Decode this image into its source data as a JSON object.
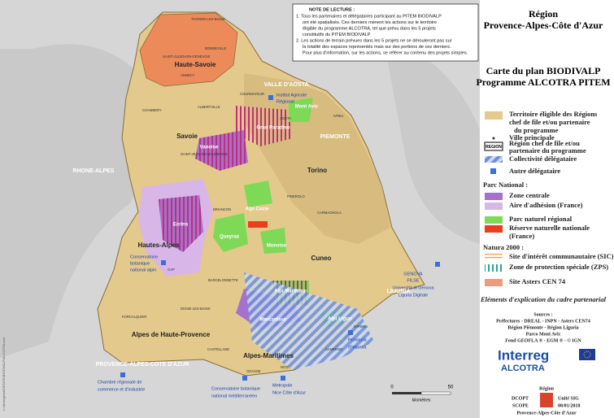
{
  "header": {
    "region_lines": [
      "Région",
      "Provence-Alpes-Côte d'Azur"
    ],
    "title_lines": [
      "Carte du plan BIODIVALP",
      "Programme ALCOTRA PITEM"
    ]
  },
  "note": {
    "title": "NOTE DE LECTURE :",
    "lines": [
      "1. Tous les partenaires et délégataires participant au PITEM BIODIVALP",
      "ont été spatialisés. Ces derniers mènent les actions sur le territoire",
      "éligible du programme ALCOTRA, tel que prévu dans les 5 projets",
      "constitutifs du PITEM BIODIVALP",
      "2. Les actions de terrain prévues dans les 5 projets ne se dérouleront pas sur",
      "la totalité des espaces représentés mais sur des portions de ces derniers.",
      "Pour plus d'information, sur les actions, se référer au contenu des projets simples."
    ]
  },
  "legend": {
    "eligible": [
      "Territoire éligible des Régions",
      "chef de file et/ou partenaire",
      "du programme"
    ],
    "city": "Ville principale",
    "region_swatch": "REGION",
    "region": [
      "Région chef de file et/ou",
      "partenaire du programme"
    ],
    "collectivite": "Collectivité délégataire",
    "autre": "Autre délégataire",
    "parc_national": {
      "title": "Parc National :",
      "items": [
        "Zone centrale",
        "Aire d'adhésion (France)"
      ]
    },
    "pnr": "Parc naturel régional",
    "reserve": [
      "Réserve naturelle nationale",
      "(France)"
    ],
    "natura": {
      "title": "Natura 2000 :",
      "items": [
        "Site d'intérêt communautaire (SIC)",
        "Zone de protection spéciale (ZPS)"
      ]
    },
    "asters": "Site Asters CEN 74"
  },
  "explication": "Eléments d'explication du cadre partenarial",
  "sources": [
    "Sources :",
    "Préfectures - DREAL - INPN - Asters CEN74",
    "Région Piémonte - Région Liguria",
    "Parco Mont Avic",
    "Fond GEOFLA ® - EGM ® - © IGN"
  ],
  "logo": {
    "interreg": "Interreg",
    "alcotra": "ALCOTRA",
    "region": "Région",
    "region_name": "Provence-Alpes-Côte d'Azur",
    "dcopt": "DCOPT",
    "scope": "SCOPE",
    "unit": "Unité SIG",
    "date": "08/01/2018"
  },
  "scale": {
    "labels": [
      "0",
      "50"
    ],
    "unit": "kilomètres"
  },
  "file_path": "L:\\devregionalS\\EDITE\\BIODIVALP\\ALCOTRA.wor",
  "map_labels": [
    "Haute-Savoie",
    "Savoie",
    "Hautes-Alpes",
    "Alpes de Haute-Provence",
    "Alpes-Maritimes",
    "Torino",
    "Cuneo",
    "VALLE D'AOSTA",
    "PIEMONTE",
    "LIGURIA",
    "RHONE-ALPES",
    "PROVENCE-ALPES-COTE D'AZUR",
    "Gran Paradiso",
    "Vanoise",
    "Mont Avic",
    "Ecrins",
    "Queyras",
    "Alpi Cozie",
    "Monviso",
    "Alpi Marittime",
    "Mercantour",
    "Alpi Liguri",
    "Institut Agricole",
    "Régional",
    "Conservatoire",
    "botanique",
    "national alpin",
    "GENOVA",
    "FILSE",
    "Università di Genova",
    "Liguria Digitale",
    "Chambre régionale de",
    "commerce et d'industrie",
    "Conservatoire botanique",
    "national méditerranéen",
    "Metropole",
    "Nice Côte d'Azur",
    "Provincia",
    "d'Imperia",
    "THONON-LES-BAINS",
    "BONNEVILLE",
    "SAINT-JULIEN-EN-GENEVOIS",
    "ANNECY",
    "CHAMBERY",
    "ALBERTVILLE",
    "COURMAYEUR",
    "AOSTA",
    "SAINT-JEAN-DE-MAURIENNE",
    "BRIANCON",
    "GAP",
    "BARCELONNETTE",
    "DIGNE-LES-BAINS",
    "FORCALQUIER",
    "CASTELLANE",
    "GRASSE",
    "NICE",
    "IMPERIA",
    "SANREMO",
    "PINEROLO",
    "CARMAGNOLA",
    "IVREA"
  ]
}
